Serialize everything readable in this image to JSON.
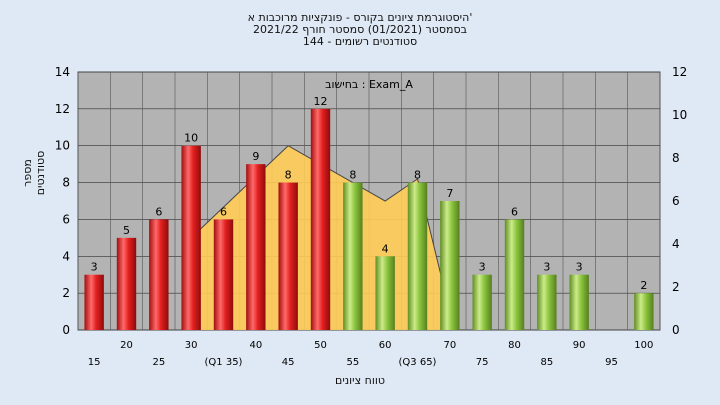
{
  "title_lines": [
    "היסטוגרמת ציונים בקורס - פונקציות מרוכבות א'",
    "בסמסטר  (01/2021)  סמסטר חורף 2021/22",
    "144 - סטודנטים רשומים"
  ],
  "chart_data": {
    "type": "bar",
    "annotation": "בחישוב : Exam_A",
    "ylabel": "מספר סטודנטים",
    "xlabel": "טווח ציונים",
    "ylim": [
      0,
      14
    ],
    "ylim_right": [
      0,
      12
    ],
    "y_ticks": [
      0,
      2,
      4,
      6,
      8,
      10,
      12,
      14
    ],
    "y_ticks_right": [
      0,
      2,
      4,
      6,
      8,
      10,
      12
    ],
    "x_tick_labels_upper": [
      "20",
      "30",
      "40",
      "50",
      "60",
      "70",
      "80",
      "90",
      "100"
    ],
    "x_tick_labels_lower": [
      "15",
      "25",
      "(Q1 35)",
      "45",
      "55",
      "(Q3 65)",
      "75",
      "85",
      "95"
    ],
    "categories": [
      "15",
      "20",
      "25",
      "30",
      "35",
      "40",
      "45",
      "50",
      "55",
      "60",
      "65",
      "70",
      "75",
      "80",
      "85",
      "90",
      "95",
      "100"
    ],
    "values": [
      3,
      5,
      6,
      10,
      6,
      9,
      8,
      12,
      8,
      4,
      8,
      7,
      3,
      6,
      3,
      3,
      0,
      2
    ],
    "data_labels": [
      "3",
      "5",
      "6",
      "10",
      "6",
      "9",
      "8",
      "12",
      "8",
      "4",
      "8",
      "7",
      "3",
      "6",
      "3",
      "3",
      "",
      "2"
    ],
    "bar_colors": [
      "red",
      "red",
      "red",
      "red",
      "red",
      "red",
      "red",
      "red",
      "green",
      "green",
      "green",
      "green",
      "green",
      "green",
      "green",
      "green",
      "green",
      "green"
    ],
    "overlay_area": {
      "color": "#ffcc55",
      "points": [
        [
          30,
          5
        ],
        [
          45,
          10
        ],
        [
          50,
          9
        ],
        [
          60,
          7
        ],
        [
          65,
          8.2
        ],
        [
          70,
          1
        ]
      ]
    },
    "grid": true,
    "colors": {
      "red": "#e02424",
      "green": "#8cc63f",
      "plot_bg": "#b3b3b3",
      "page_bg": "#dfe9f5"
    }
  }
}
